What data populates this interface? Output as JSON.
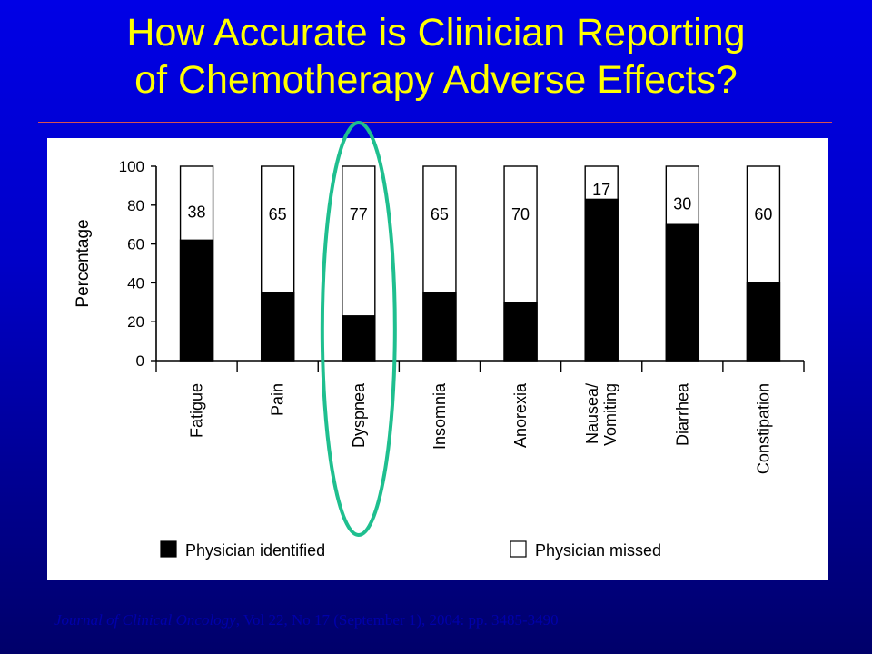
{
  "slide": {
    "title_line1": "How Accurate is Clinician Reporting",
    "title_line2": "of Chemotherapy Adverse Effects?",
    "citation_journal": "Journal of Clinical Oncology",
    "citation_rest": ", Vol 22, No 17 (September 1), 2004: pp. 3485-3490"
  },
  "colors": {
    "title": "#ffff00",
    "identified": "#000000",
    "missed": "#ffffff",
    "highlight": "#1fbf8f"
  },
  "chart_data": {
    "type": "bar",
    "stacked": true,
    "categories": [
      "Fatigue",
      "Pain",
      "Dyspnea",
      "Insomnia",
      "Anorexia",
      "Nausea/ Vomiting",
      "Diarrhea",
      "Constipation"
    ],
    "series": [
      {
        "name": "Physician identified",
        "values": [
          62,
          35,
          23,
          35,
          30,
          83,
          70,
          40
        ]
      },
      {
        "name": "Physician missed",
        "values": [
          38,
          65,
          77,
          65,
          70,
          17,
          30,
          60
        ]
      }
    ],
    "data_labels": [
      "38",
      "65",
      "77",
      "65",
      "70",
      "17",
      "30",
      "60"
    ],
    "title": "",
    "xlabel": "",
    "ylabel": "Percentage",
    "ylim": [
      0,
      100
    ],
    "yticks": [
      0,
      20,
      40,
      60,
      80,
      100
    ],
    "grid": false,
    "legend_position": "bottom",
    "highlighted_category": "Dyspnea"
  }
}
